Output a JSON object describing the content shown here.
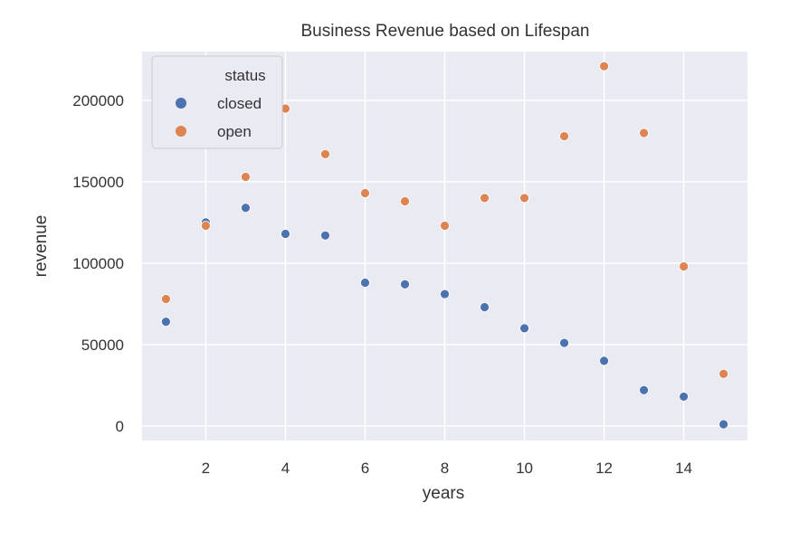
{
  "chart_data": {
    "type": "scatter",
    "title": "Business Revenue based on Lifespan",
    "xlabel": "years",
    "ylabel": "revenue",
    "xlim": [
      0.4,
      15.6
    ],
    "ylim": [
      -9000,
      230000
    ],
    "xticks": [
      2,
      4,
      6,
      8,
      10,
      12,
      14
    ],
    "yticks": [
      0,
      50000,
      100000,
      150000,
      200000
    ],
    "xtick_labels": [
      "2",
      "4",
      "6",
      "8",
      "10",
      "12",
      "14"
    ],
    "ytick_labels": [
      "0",
      "50000",
      "100000",
      "150000",
      "200000"
    ],
    "grid": true,
    "legend": {
      "title": "status",
      "placement": "top-left"
    },
    "series": [
      {
        "name": "closed",
        "color": "#4c72b0",
        "x": [
          1,
          2,
          3,
          4,
          5,
          6,
          7,
          8,
          9,
          10,
          11,
          12,
          13,
          14,
          15
        ],
        "y": [
          64000,
          125000,
          134000,
          118000,
          117000,
          88000,
          87000,
          81000,
          73000,
          60000,
          51000,
          40000,
          22000,
          18000,
          1000
        ]
      },
      {
        "name": "open",
        "color": "#dd8452",
        "x": [
          1,
          2,
          3,
          4,
          5,
          6,
          7,
          8,
          9,
          10,
          11,
          12,
          13,
          14,
          15
        ],
        "y": [
          78000,
          123000,
          153000,
          195000,
          167000,
          143000,
          138000,
          123000,
          140000,
          140000,
          178000,
          221000,
          180000,
          98000,
          32000
        ]
      }
    ]
  }
}
